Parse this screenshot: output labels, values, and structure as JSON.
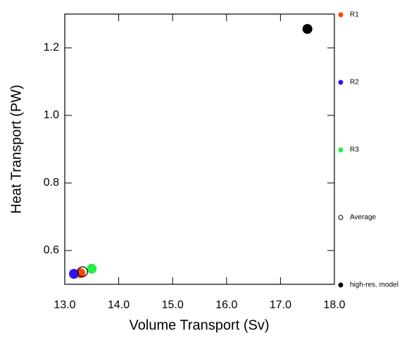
{
  "chart_data": {
    "type": "scatter",
    "x_label": "Volume Transport (Sv)",
    "y_label": "Heat Transport (PW)",
    "xlim": [
      13.0,
      18.0
    ],
    "ylim": [
      0.5,
      1.3
    ],
    "xticks": [
      {
        "value": 13,
        "label": "13.0"
      },
      {
        "value": 14,
        "label": "14.0"
      },
      {
        "value": 15,
        "label": "15.0"
      },
      {
        "value": 16,
        "label": "16.0"
      },
      {
        "value": 17,
        "label": "17.0"
      },
      {
        "value": 18,
        "label": "18.0"
      }
    ],
    "yticks": [
      0.6,
      0.8,
      {
        "value": 1,
        "label": "1.0"
      },
      1.2
    ],
    "series": [
      {
        "name": "R1",
        "color": "#ff4500",
        "marker": "filled",
        "x": [
          13.29
        ],
        "values": [
          0.533
        ]
      },
      {
        "name": "R2",
        "color": "#3311ee",
        "marker": "filled",
        "x": [
          13.17
        ],
        "values": [
          0.531
        ]
      },
      {
        "name": "R3",
        "color": "#22ee44",
        "marker": "filled",
        "x": [
          13.5
        ],
        "values": [
          0.546
        ]
      },
      {
        "name": "Average",
        "color": "#000000",
        "marker": "open",
        "x": [
          13.33
        ],
        "values": [
          0.537
        ]
      },
      {
        "name": "high-res. model",
        "color": "#000000",
        "marker": "filled",
        "x": [
          17.5
        ],
        "values": [
          1.256
        ]
      }
    ]
  }
}
